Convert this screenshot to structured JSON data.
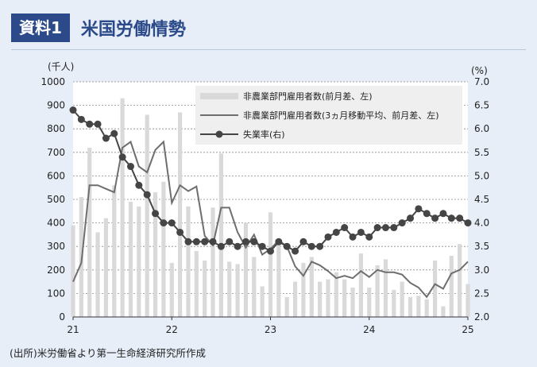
{
  "header": {
    "badge": "資料1",
    "title": "米国労働情勢"
  },
  "source": "(出所)米労働省より第一生命経済研究所作成",
  "colors": {
    "accent": "#2c4a8a",
    "bar": "#d9d9d9",
    "moving_average": "#6e6e6e",
    "unemployment": "#454545"
  },
  "chart_data": {
    "type": "bar",
    "title": "",
    "left_axis": {
      "unit_label": "(千人)",
      "ylim": [
        0,
        1000
      ],
      "ticks": [
        "0",
        "100",
        "200",
        "300",
        "400",
        "500",
        "600",
        "700",
        "800",
        "900",
        "1000"
      ]
    },
    "right_axis": {
      "unit_label": "(%)",
      "ylim": [
        2.0,
        7.0
      ],
      "ticks": [
        "2.0",
        "2.5",
        "3.0",
        "3.5",
        "4.0",
        "4.5",
        "5.0",
        "5.5",
        "6.0",
        "6.5",
        "7.0"
      ]
    },
    "x_tick_labels": [
      "21",
      "22",
      "23",
      "24",
      "25"
    ],
    "grid": true,
    "legend_position": "top-right",
    "series": [
      {
        "name": "非農業部門雇用者数(前月差、左)",
        "type": "bar",
        "axis": "left",
        "values": [
          390,
          510,
          720,
          360,
          420,
          560,
          930,
          490,
          470,
          860,
          530,
          575,
          230,
          870,
          470,
          280,
          240,
          465,
          695,
          235,
          225,
          400,
          255,
          130,
          445,
          315,
          85,
          150,
          230,
          255,
          150,
          160,
          190,
          160,
          125,
          270,
          125,
          220,
          245,
          115,
          150,
          85,
          90,
          75,
          240,
          45,
          260,
          310,
          140
        ]
      },
      {
        "name": "非農業部門雇用者数(3ヵ月移動平均、前月差、左)",
        "type": "line",
        "axis": "left",
        "values": [
          150,
          230,
          560,
          560,
          545,
          530,
          720,
          745,
          640,
          615,
          710,
          745,
          485,
          560,
          535,
          555,
          345,
          305,
          465,
          465,
          360,
          295,
          350,
          265,
          290,
          325,
          300,
          215,
          175,
          235,
          220,
          195,
          165,
          175,
          165,
          195,
          170,
          200,
          190,
          190,
          180,
          145,
          125,
          85,
          140,
          120,
          185,
          200,
          235
        ]
      },
      {
        "name": "失業率(右)",
        "type": "line",
        "axis": "right",
        "values": [
          6.4,
          6.2,
          6.1,
          6.1,
          5.8,
          5.9,
          5.4,
          5.2,
          4.8,
          4.6,
          4.2,
          4.0,
          4.0,
          3.8,
          3.6,
          3.6,
          3.6,
          3.6,
          3.5,
          3.6,
          3.5,
          3.6,
          3.6,
          3.5,
          3.4,
          3.6,
          3.5,
          3.4,
          3.6,
          3.5,
          3.5,
          3.7,
          3.8,
          3.9,
          3.7,
          3.8,
          3.7,
          3.9,
          3.9,
          3.9,
          4.0,
          4.1,
          4.3,
          4.2,
          4.1,
          4.2,
          4.1,
          4.1,
          4.0
        ]
      }
    ]
  }
}
